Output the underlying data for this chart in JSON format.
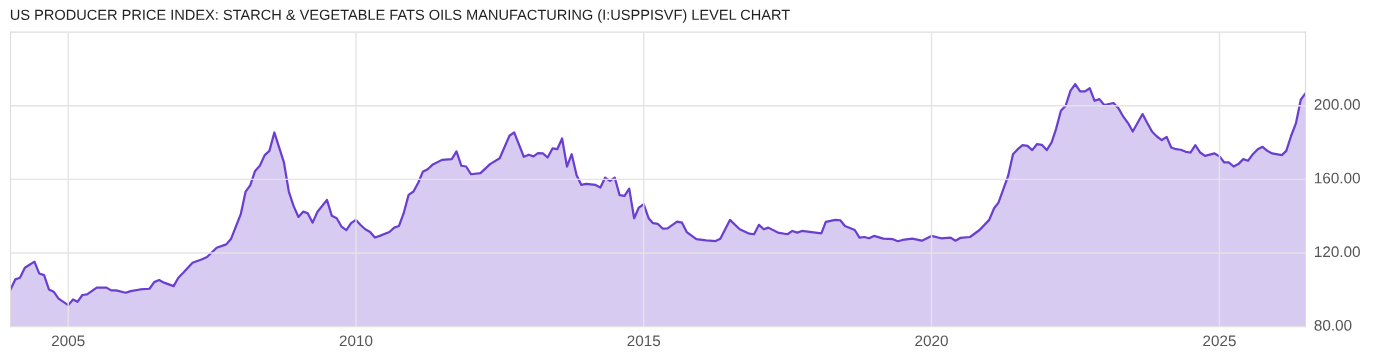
{
  "chart_data": {
    "type": "area",
    "title": "US PRODUCER PRICE INDEX: STARCH & VEGETABLE FATS OILS MANUFACTURING (I:USPPISVF) LEVEL CHART",
    "x": [
      "2004-01",
      "2004-02",
      "2004-03",
      "2004-04",
      "2004-06",
      "2004-07",
      "2004-08",
      "2004-09",
      "2004-10",
      "2004-11",
      "2005-01",
      "2005-02",
      "2005-03",
      "2005-04",
      "2005-05",
      "2005-07",
      "2005-09",
      "2005-10",
      "2005-11",
      "2006-01",
      "2006-02",
      "2006-04",
      "2006-06",
      "2006-07",
      "2006-08",
      "2006-09",
      "2006-11",
      "2006-12",
      "2007-01",
      "2007-03",
      "2007-05",
      "2007-06",
      "2007-08",
      "2007-10",
      "2007-11",
      "2008-01",
      "2008-02",
      "2008-03",
      "2008-04",
      "2008-05",
      "2008-06",
      "2008-07",
      "2008-08",
      "2008-09",
      "2008-10",
      "2008-11",
      "2008-12",
      "2009-01",
      "2009-02",
      "2009-03",
      "2009-04",
      "2009-05",
      "2009-07",
      "2009-08",
      "2009-09",
      "2009-10",
      "2009-11",
      "2009-12",
      "2010-01",
      "2010-02",
      "2010-03",
      "2010-04",
      "2010-05",
      "2010-06",
      "2010-08",
      "2010-09",
      "2010-10",
      "2010-11",
      "2010-12",
      "2011-01",
      "2011-02",
      "2011-03",
      "2011-04",
      "2011-05",
      "2011-07",
      "2011-09",
      "2011-10",
      "2011-11",
      "2011-12",
      "2012-01",
      "2012-03",
      "2012-05",
      "2012-07",
      "2012-09",
      "2012-10",
      "2012-12",
      "2013-01",
      "2013-02",
      "2013-03",
      "2013-04",
      "2013-05",
      "2013-06",
      "2013-07",
      "2013-08",
      "2013-09",
      "2013-10",
      "2013-11",
      "2013-12",
      "2014-01",
      "2014-03",
      "2014-04",
      "2014-05",
      "2014-06",
      "2014-07",
      "2014-08",
      "2014-09",
      "2014-10",
      "2014-11",
      "2014-12",
      "2015-01",
      "2015-02",
      "2015-03",
      "2015-04",
      "2015-05",
      "2015-06",
      "2015-08",
      "2015-09",
      "2015-10",
      "2015-12",
      "2016-02",
      "2016-04",
      "2016-05",
      "2016-07",
      "2016-09",
      "2016-11",
      "2016-12",
      "2017-01",
      "2017-02",
      "2017-03",
      "2017-05",
      "2017-07",
      "2017-08",
      "2017-09",
      "2017-10",
      "2018-02",
      "2018-03",
      "2018-05",
      "2018-06",
      "2018-07",
      "2018-09",
      "2018-10",
      "2018-11",
      "2018-12",
      "2019-01",
      "2019-03",
      "2019-05",
      "2019-06",
      "2019-07",
      "2019-09",
      "2019-11",
      "2020-01",
      "2020-03",
      "2020-05",
      "2020-06",
      "2020-07",
      "2020-09",
      "2020-11",
      "2021-01",
      "2021-02",
      "2021-03",
      "2021-05",
      "2021-06",
      "2021-07",
      "2021-08",
      "2021-09",
      "2021-10",
      "2021-11",
      "2021-12",
      "2022-01",
      "2022-02",
      "2022-03",
      "2022-04",
      "2022-05",
      "2022-06",
      "2022-07",
      "2022-08",
      "2022-09",
      "2022-10",
      "2022-11",
      "2022-12",
      "2023-01",
      "2023-03",
      "2023-04",
      "2023-05",
      "2023-06",
      "2023-07",
      "2023-09",
      "2023-10",
      "2023-11",
      "2023-12",
      "2024-01",
      "2024-02",
      "2024-03",
      "2024-04",
      "2024-05",
      "2024-06",
      "2024-07",
      "2024-08",
      "2024-09",
      "2024-10",
      "2024-12",
      "2025-01",
      "2025-02",
      "2025-03",
      "2025-04",
      "2025-05",
      "2025-06",
      "2025-07",
      "2025-08",
      "2025-09",
      "2025-10",
      "2025-11",
      "2025-12",
      "2026-02",
      "2026-03",
      "2026-04",
      "2026-05",
      "2026-06",
      "2026-07"
    ],
    "series": [
      {
        "color": "#6a3fd0",
        "values": [
          100.2,
          105.7,
          106.6,
          112.0,
          115.3,
          108.9,
          108.0,
          100.2,
          99.0,
          95.2,
          91.7,
          94.8,
          93.5,
          97.2,
          97.5,
          101.2,
          101.2,
          99.7,
          99.7,
          98.4,
          99.3,
          100.2,
          100.6,
          104.2,
          105.3,
          103.9,
          102.0,
          106.6,
          109.3,
          114.7,
          116.6,
          117.8,
          122.9,
          124.7,
          127.8,
          141.1,
          153.4,
          156.8,
          164.6,
          167.4,
          173.2,
          175.5,
          185.5,
          177.3,
          169.2,
          153.4,
          145.6,
          139.6,
          142.5,
          141.6,
          136.5,
          142.3,
          148.9,
          140.2,
          138.9,
          134.4,
          132.4,
          136.2,
          138.0,
          135.1,
          132.9,
          131.4,
          128.4,
          129.3,
          131.4,
          133.8,
          134.7,
          142.0,
          151.6,
          153.4,
          158.3,
          164.1,
          165.5,
          167.9,
          170.6,
          171.0,
          175.2,
          167.4,
          167.0,
          162.8,
          163.4,
          168.3,
          171.5,
          183.7,
          185.5,
          172.3,
          173.4,
          172.5,
          174.3,
          174.1,
          171.9,
          176.8,
          176.4,
          182.2,
          167.0,
          173.7,
          162.3,
          157.0,
          157.6,
          157.0,
          155.6,
          161.0,
          159.2,
          161.0,
          151.4,
          151.0,
          155.0,
          138.9,
          144.7,
          146.5,
          138.9,
          136.2,
          135.8,
          133.3,
          133.4,
          137.1,
          136.5,
          131.4,
          127.5,
          126.9,
          126.5,
          127.8,
          138.0,
          132.9,
          130.5,
          130.2,
          135.3,
          132.9,
          133.8,
          131.1,
          130.2,
          132.0,
          131.1,
          132.0,
          130.7,
          136.9,
          138.0,
          137.8,
          134.7,
          132.5,
          128.4,
          128.7,
          128.0,
          129.3,
          127.8,
          127.5,
          126.4,
          127.1,
          127.8,
          126.7,
          129.3,
          128.0,
          128.4,
          126.7,
          128.2,
          128.7,
          132.5,
          138.0,
          144.3,
          147.4,
          161.9,
          173.7,
          176.4,
          178.6,
          178.2,
          175.9,
          179.2,
          178.8,
          175.9,
          180.1,
          187.3,
          197.3,
          200.0,
          208.2,
          211.8,
          207.8,
          207.8,
          209.5,
          202.7,
          203.6,
          200.4,
          201.5,
          198.7,
          194.2,
          190.6,
          186.0,
          195.5,
          190.6,
          185.9,
          183.3,
          181.3,
          183.1,
          177.3,
          176.4,
          176.1,
          175.0,
          174.6,
          178.6,
          174.6,
          172.8,
          174.1,
          172.5,
          169.2,
          169.2,
          167.0,
          168.3,
          171.0,
          170.1,
          173.7,
          176.4,
          177.7,
          175.5,
          174.1,
          173.2,
          175.5,
          183.7,
          190.4,
          203.3,
          206.7
        ]
      }
    ],
    "xlim": [
      "2004-01",
      "2026-07"
    ],
    "xticks": [
      {
        "value": "2005-01",
        "label": "2005"
      },
      {
        "value": "2010-01",
        "label": "2010"
      },
      {
        "value": "2015-01",
        "label": "2015"
      },
      {
        "value": "2020-01",
        "label": "2020"
      },
      {
        "value": "2025-01",
        "label": "2025"
      }
    ],
    "ylim": [
      80,
      240
    ],
    "yticks": [
      {
        "value": 80,
        "label": "80.00"
      },
      {
        "value": 120,
        "label": "120.00"
      },
      {
        "value": 160,
        "label": "160.00"
      },
      {
        "value": 200,
        "label": "200.00"
      }
    ],
    "grid": true,
    "legend": false
  }
}
